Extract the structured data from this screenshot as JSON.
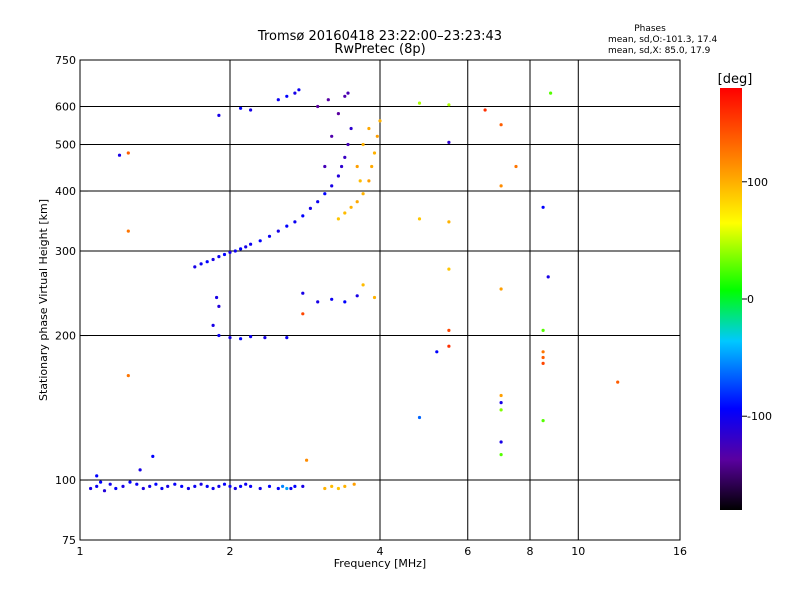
{
  "chart_data": {
    "type": "scatter",
    "title": "Tromsø 20160418 23:22:00–23:23:43",
    "subtitle": "RwPretec (8p)",
    "xlabel": "Frequency [MHz]",
    "ylabel": "Stationary phase Virtual Height [km]",
    "x_scale": "log",
    "y_scale": "log",
    "xlim": [
      1,
      16
    ],
    "ylim": [
      75,
      750
    ],
    "x_ticks": [
      1,
      2,
      4,
      6,
      8,
      10,
      16
    ],
    "y_ticks": [
      75,
      100,
      200,
      300,
      400,
      500,
      600,
      750
    ],
    "grid": true,
    "phase_stats": {
      "title": "Phases",
      "line_o": "mean, sd,O:-101.3, 17.4",
      "line_x": "mean, sd,X:  85.0, 17.9"
    },
    "colorbar": {
      "label": "[deg]",
      "range": [
        -180,
        180
      ],
      "ticks": [
        100,
        0,
        -100
      ]
    },
    "series": [
      {
        "points": [
          [
            1.05,
            96,
            -110
          ],
          [
            1.08,
            97,
            -105
          ],
          [
            1.1,
            99,
            -100
          ],
          [
            1.12,
            95,
            -115
          ],
          [
            1.15,
            98,
            -108
          ],
          [
            1.18,
            96,
            -102
          ],
          [
            1.22,
            97,
            -110
          ],
          [
            1.26,
            99,
            -100
          ],
          [
            1.3,
            98,
            -105
          ],
          [
            1.34,
            96,
            -112
          ],
          [
            1.38,
            97,
            -108
          ],
          [
            1.42,
            98,
            -100
          ],
          [
            1.46,
            96,
            -104
          ],
          [
            1.5,
            97,
            -110
          ],
          [
            1.55,
            98,
            -103
          ],
          [
            1.6,
            97,
            -100
          ],
          [
            1.65,
            96,
            -108
          ],
          [
            1.7,
            97,
            -105
          ],
          [
            1.75,
            98,
            -110
          ],
          [
            1.8,
            97,
            -100
          ],
          [
            1.85,
            96,
            -106
          ],
          [
            1.9,
            97,
            -108
          ],
          [
            1.95,
            98,
            -102
          ],
          [
            2.0,
            97,
            -104
          ],
          [
            2.05,
            96,
            -110
          ],
          [
            2.1,
            97,
            -100
          ],
          [
            2.15,
            98,
            -106
          ],
          [
            2.2,
            97,
            -104
          ],
          [
            2.3,
            96,
            -108
          ],
          [
            2.4,
            97,
            -100
          ],
          [
            2.5,
            96,
            -102
          ],
          [
            2.55,
            97,
            -60
          ],
          [
            2.6,
            96,
            -50
          ],
          [
            2.65,
            96,
            -105
          ],
          [
            2.7,
            97,
            -100
          ],
          [
            2.8,
            97,
            -110
          ],
          [
            1.4,
            112,
            -100
          ],
          [
            1.32,
            105,
            -110
          ],
          [
            1.08,
            102,
            -100
          ],
          [
            3.1,
            96,
            100
          ],
          [
            3.2,
            97,
            95
          ],
          [
            3.3,
            96,
            90
          ],
          [
            3.4,
            97,
            100
          ],
          [
            3.55,
            98,
            110
          ],
          [
            1.7,
            278,
            -110
          ],
          [
            1.75,
            282,
            -105
          ],
          [
            1.8,
            285,
            -100
          ],
          [
            1.85,
            288,
            -110
          ],
          [
            1.9,
            292,
            -105
          ],
          [
            1.95,
            295,
            -100
          ],
          [
            2.0,
            298,
            -110
          ],
          [
            2.05,
            300,
            -105
          ],
          [
            2.1,
            303,
            -100
          ],
          [
            2.15,
            306,
            -110
          ],
          [
            2.2,
            310,
            -105
          ],
          [
            2.3,
            315,
            -100
          ],
          [
            2.4,
            322,
            -105
          ],
          [
            2.5,
            330,
            -110
          ],
          [
            2.6,
            338,
            -100
          ],
          [
            2.7,
            345,
            -105
          ],
          [
            2.8,
            355,
            -100
          ],
          [
            2.9,
            368,
            -110
          ],
          [
            3.0,
            380,
            -105
          ],
          [
            3.1,
            395,
            -100
          ],
          [
            3.2,
            410,
            -110
          ],
          [
            3.3,
            430,
            -115
          ],
          [
            3.35,
            450,
            -120
          ],
          [
            3.4,
            470,
            -125
          ],
          [
            3.45,
            500,
            -130
          ],
          [
            3.5,
            540,
            -120
          ],
          [
            3.3,
            350,
            90
          ],
          [
            3.4,
            360,
            95
          ],
          [
            3.5,
            370,
            100
          ],
          [
            3.6,
            380,
            105
          ],
          [
            3.7,
            395,
            100
          ],
          [
            3.8,
            420,
            110
          ],
          [
            3.85,
            450,
            105
          ],
          [
            3.9,
            480,
            100
          ],
          [
            3.95,
            520,
            110
          ],
          [
            4.0,
            560,
            100
          ],
          [
            3.6,
            450,
            110
          ],
          [
            3.7,
            500,
            100
          ],
          [
            3.8,
            540,
            105
          ],
          [
            3.65,
            420,
            95
          ],
          [
            3.1,
            450,
            -130
          ],
          [
            3.2,
            520,
            -135
          ],
          [
            3.3,
            580,
            -140
          ],
          [
            3.4,
            630,
            -135
          ],
          [
            3.0,
            600,
            -140
          ],
          [
            3.15,
            620,
            -138
          ],
          [
            3.45,
            640,
            -132
          ],
          [
            2.2,
            590,
            -110
          ],
          [
            2.5,
            620,
            -105
          ],
          [
            2.6,
            630,
            -100
          ],
          [
            2.7,
            640,
            -110
          ],
          [
            2.75,
            650,
            -105
          ],
          [
            1.9,
            575,
            -110
          ],
          [
            2.1,
            595,
            -100
          ],
          [
            1.88,
            240,
            -110
          ],
          [
            1.9,
            230,
            -115
          ],
          [
            1.85,
            210,
            -110
          ],
          [
            1.9,
            200,
            -105
          ],
          [
            2.0,
            198,
            -110
          ],
          [
            2.1,
            197,
            -100
          ],
          [
            2.2,
            199,
            -105
          ],
          [
            2.35,
            198,
            -110
          ],
          [
            2.6,
            198,
            -105
          ],
          [
            3.0,
            235,
            -110
          ],
          [
            3.2,
            238,
            -105
          ],
          [
            3.4,
            235,
            -100
          ],
          [
            3.6,
            242,
            -110
          ],
          [
            3.7,
            255,
            95
          ],
          [
            3.9,
            240,
            100
          ],
          [
            2.8,
            245,
            -110
          ],
          [
            2.8,
            222,
            150
          ],
          [
            4.8,
            610,
            40
          ],
          [
            5.5,
            605,
            40
          ],
          [
            6.5,
            590,
            160
          ],
          [
            7.0,
            550,
            140
          ],
          [
            5.5,
            505,
            -120
          ],
          [
            7.5,
            450,
            130
          ],
          [
            7.0,
            410,
            120
          ],
          [
            8.5,
            370,
            -100
          ],
          [
            4.8,
            350,
            90
          ],
          [
            5.5,
            345,
            100
          ],
          [
            5.5,
            275,
            90
          ],
          [
            7.0,
            250,
            110
          ],
          [
            8.7,
            265,
            -110
          ],
          [
            5.5,
            205,
            150
          ],
          [
            5.5,
            190,
            160
          ],
          [
            5.2,
            185,
            -100
          ],
          [
            8.5,
            205,
            20
          ],
          [
            8.5,
            185,
            130
          ],
          [
            8.5,
            180,
            140
          ],
          [
            8.5,
            175,
            150
          ],
          [
            7.0,
            150,
            110
          ],
          [
            7.0,
            145,
            -110
          ],
          [
            7.0,
            140,
            30
          ],
          [
            4.8,
            135,
            -70
          ],
          [
            8.5,
            133,
            20
          ],
          [
            7.0,
            120,
            -110
          ],
          [
            7.0,
            113,
            20
          ],
          [
            12.0,
            160,
            140
          ],
          [
            1.25,
            330,
            130
          ],
          [
            1.25,
            165,
            130
          ],
          [
            1.25,
            480,
            140
          ],
          [
            1.2,
            475,
            -110
          ],
          [
            2.85,
            110,
            120
          ],
          [
            8.8,
            640,
            20
          ]
        ]
      }
    ]
  }
}
